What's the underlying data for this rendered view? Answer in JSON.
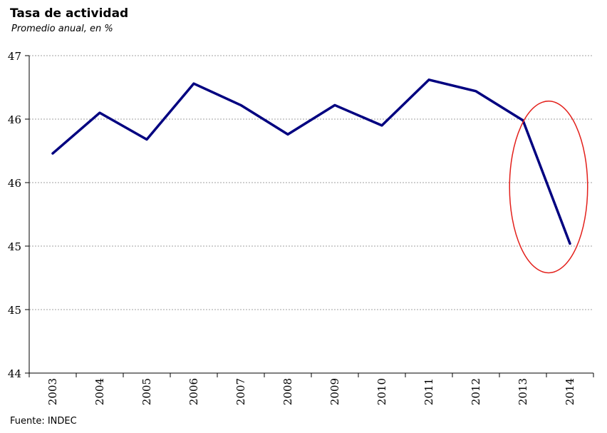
{
  "chart_data": {
    "type": "line",
    "title": "Tasa de actividad",
    "subtitle": "Promedio anual, en %",
    "source": "Fuente: INDEC",
    "categories": [
      "2003",
      "2004",
      "2005",
      "2006",
      "2007",
      "2008",
      "2009",
      "2010",
      "2011",
      "2012",
      "2013",
      "2014"
    ],
    "y_tick_labels": [
      "44",
      "45",
      "45",
      "46",
      "46",
      "47"
    ],
    "ylim": [
      44,
      46.5
    ],
    "series": [
      {
        "values": [
          45.73,
          46.05,
          45.84,
          46.28,
          46.11,
          45.88,
          46.11,
          45.95,
          46.31,
          46.22,
          45.99,
          45.02
        ]
      }
    ],
    "grid": "horizontal dashed",
    "colors": {
      "line": "#000080",
      "highlight": "#e3201b",
      "grid": "#a0a0a0",
      "axis": "#000000"
    },
    "annotation": "red-ellipse-highlight-2013-2014"
  }
}
